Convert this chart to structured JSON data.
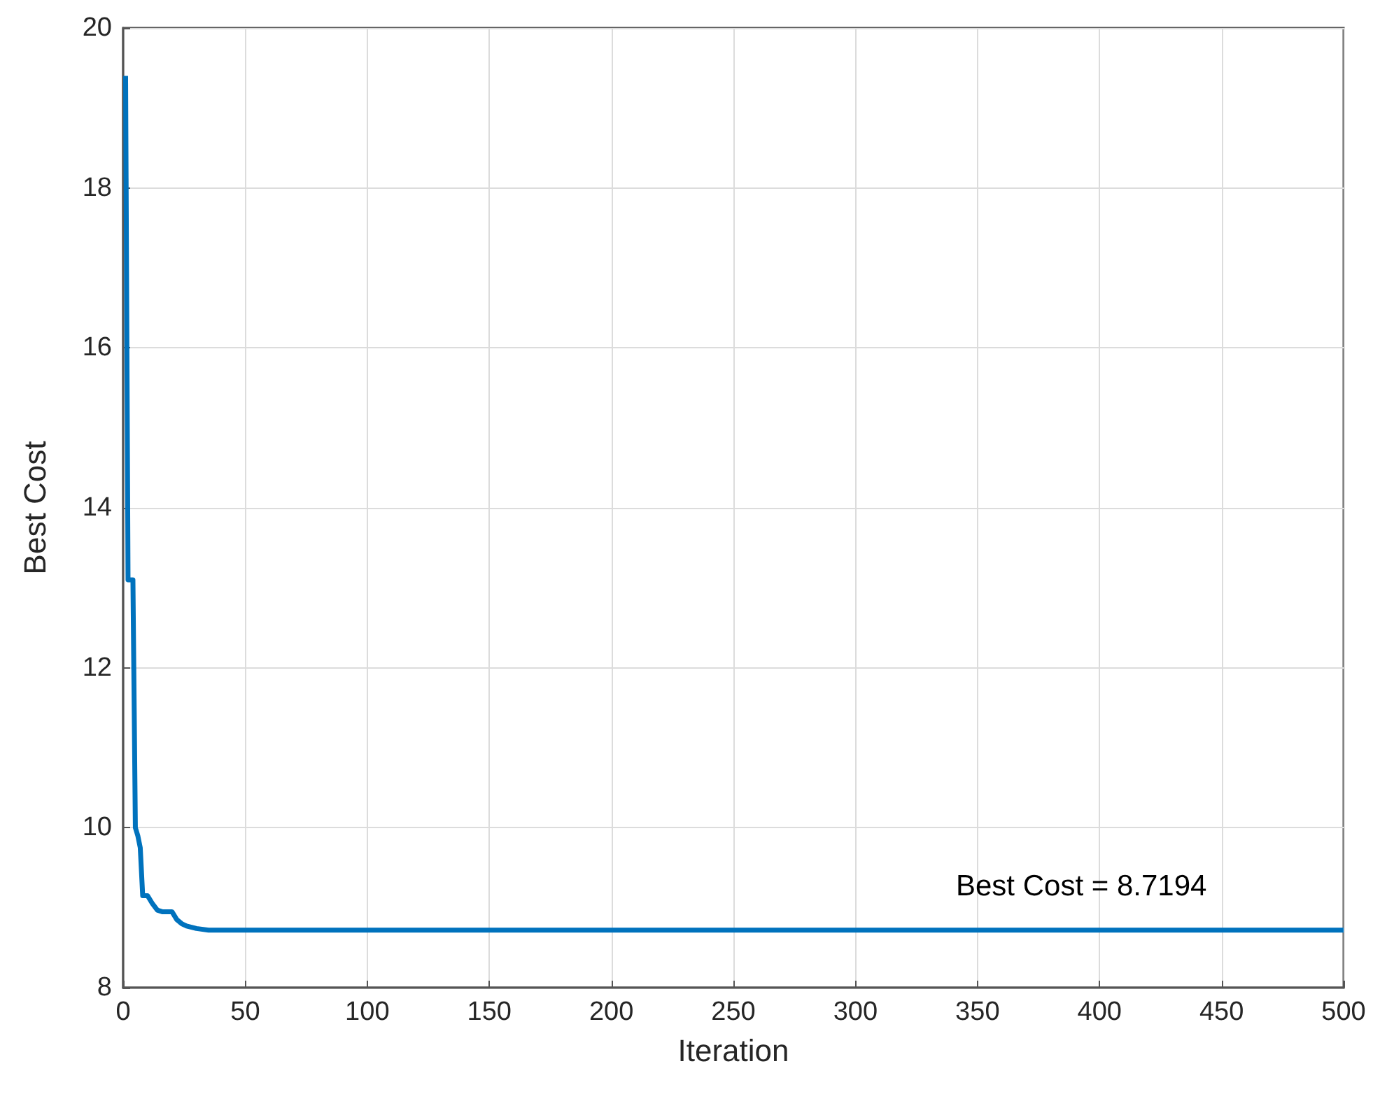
{
  "chart_data": {
    "type": "line",
    "xlabel": "Iteration",
    "ylabel": "Best Cost",
    "x": [
      1,
      2,
      4,
      5,
      6,
      7,
      8,
      10,
      11,
      12,
      14,
      16,
      20,
      21,
      22,
      24,
      26,
      30,
      35,
      40,
      50,
      100,
      200,
      300,
      400,
      500
    ],
    "series": [
      {
        "color": "#0072bd",
        "values": [
          19.4,
          13.1,
          13.1,
          10.0,
          9.9,
          9.75,
          9.15,
          9.15,
          9.1,
          9.05,
          8.97,
          8.95,
          8.95,
          8.9,
          8.85,
          8.8,
          8.77,
          8.74,
          8.72,
          8.72,
          8.72,
          8.72,
          8.72,
          8.72,
          8.72,
          8.72
        ]
      }
    ],
    "xlim": [
      0,
      500
    ],
    "xticks": [
      0,
      50,
      100,
      150,
      200,
      250,
      300,
      350,
      400,
      450,
      500
    ],
    "ylim": [
      8,
      20
    ],
    "yticks": [
      8,
      10,
      12,
      14,
      16,
      18,
      20
    ],
    "grid": true,
    "marker": "none",
    "line_style": "solid",
    "annotations": [
      "Best Cost = 8.7194"
    ]
  }
}
